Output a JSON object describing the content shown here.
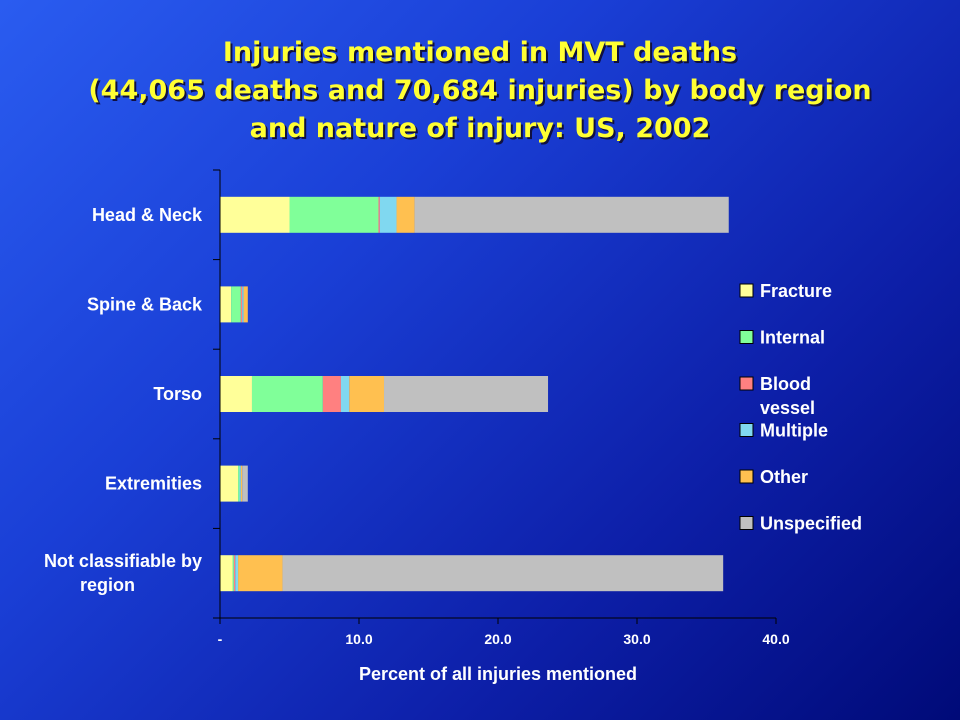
{
  "chart_data": {
    "type": "bar",
    "orientation": "horizontal",
    "stacked": true,
    "title_lines": [
      "Injuries mentioned in MVT deaths",
      "(44,065 deaths and 70,684 injuries) by body region",
      "and nature of injury: US, 2002"
    ],
    "xlabel": "Percent of all injuries mentioned",
    "xlim": [
      0,
      40
    ],
    "xticks": [
      {
        "value": 0,
        "label": "-"
      },
      {
        "value": 10,
        "label": "10.0"
      },
      {
        "value": 20,
        "label": "20.0"
      },
      {
        "value": 30,
        "label": "30.0"
      },
      {
        "value": 40,
        "label": "40.0"
      }
    ],
    "categories": [
      [
        "Head & Neck"
      ],
      [
        "Spine & Back"
      ],
      [
        "Torso"
      ],
      [
        "Extremities"
      ],
      [
        "Not classifiable by",
        "region"
      ]
    ],
    "series": [
      {
        "name": "Fracture",
        "color": "#ffff99",
        "values": [
          5.0,
          0.8,
          2.3,
          1.3,
          0.9
        ]
      },
      {
        "name": "Internal",
        "color": "#80ff99",
        "values": [
          6.4,
          0.7,
          5.1,
          0.1,
          0.1
        ]
      },
      {
        "name": "Blood vessel",
        "color": "#ff8080",
        "values": [
          0.1,
          0.1,
          1.3,
          0.0,
          0.1
        ]
      },
      {
        "name": "Multiple",
        "color": "#80d8f0",
        "values": [
          1.2,
          0.1,
          0.6,
          0.1,
          0.2
        ]
      },
      {
        "name": "Other",
        "color": "#ffc050",
        "values": [
          1.3,
          0.3,
          2.5,
          0.1,
          3.2
        ]
      },
      {
        "name": "Unspecified",
        "color": "#c0c0c0",
        "values": [
          22.6,
          0.0,
          11.8,
          0.4,
          31.7
        ]
      }
    ],
    "legend_position": "right"
  }
}
